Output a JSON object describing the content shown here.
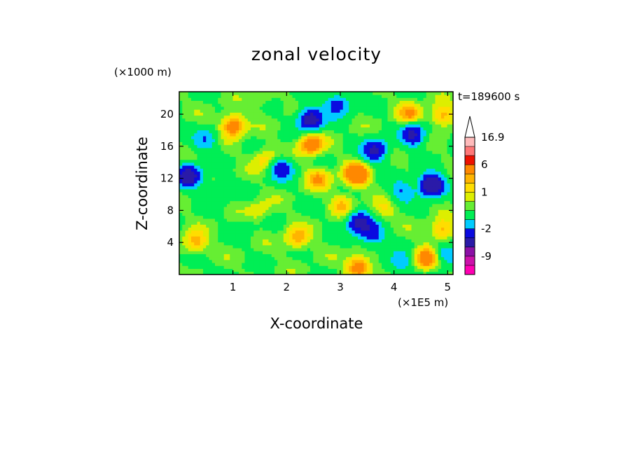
{
  "chart_data": {
    "type": "heatmap",
    "title": "zonal velocity",
    "xlabel": "X-coordinate",
    "ylabel": "Z-coordinate",
    "x_unit": "(×1E5 m)",
    "y_unit": "(×1000 m)",
    "time_label": "t=189600 s",
    "xlim": [
      0,
      5.1
    ],
    "ylim": [
      0,
      22.8
    ],
    "x_ticks": [
      "1",
      "2",
      "3",
      "4",
      "5"
    ],
    "y_ticks": [
      "4",
      "8",
      "12",
      "16",
      "20"
    ],
    "colorbar": {
      "levels": [
        -12,
        -9,
        -6,
        -3.5,
        -2,
        -1,
        0,
        0.5,
        1,
        1.5,
        2,
        6,
        9,
        12,
        16.9
      ],
      "colors": [
        "#ff00b3",
        "#cc11aa",
        "#8c10a6",
        "#2a1aa8",
        "#0a0ae0",
        "#00ccff",
        "#00ee55",
        "#66ee33",
        "#ddee00",
        "#ffdd00",
        "#ffb400",
        "#ff8800",
        "#ee1100",
        "#ff7777",
        "#ffbbbb"
      ],
      "labels": [
        "16.9",
        "6",
        "1",
        "-2",
        "-9"
      ]
    },
    "features": [
      {
        "x": 0.18,
        "z": 12.3,
        "u": -5
      },
      {
        "x": 2.45,
        "z": 19.4,
        "u": -5
      },
      {
        "x": 2.95,
        "z": 21.2,
        "u": -3
      },
      {
        "x": 3.65,
        "z": 15.5,
        "u": -4
      },
      {
        "x": 4.35,
        "z": 17.5,
        "u": -4
      },
      {
        "x": 4.7,
        "z": 11.2,
        "u": -6
      },
      {
        "x": 3.35,
        "z": 6.5,
        "u": -4
      },
      {
        "x": 3.6,
        "z": 5.0,
        "u": -3
      },
      {
        "x": 1.9,
        "z": 13.2,
        "u": -3
      },
      {
        "x": 4.1,
        "z": 1.5,
        "u": -2
      },
      {
        "x": 4.95,
        "z": 2.5,
        "u": -2
      },
      {
        "x": 0.5,
        "z": 16.8,
        "u": -2
      },
      {
        "x": 4.15,
        "z": 10.4,
        "u": -2
      },
      {
        "x": 1.0,
        "z": 18.6,
        "u": 3
      },
      {
        "x": 2.45,
        "z": 16.3,
        "u": 3
      },
      {
        "x": 3.3,
        "z": 12.5,
        "u": 4
      },
      {
        "x": 4.3,
        "z": 20.0,
        "u": 2
      },
      {
        "x": 4.9,
        "z": 19.8,
        "u": 2
      },
      {
        "x": 0.3,
        "z": 4.0,
        "u": 2
      },
      {
        "x": 2.2,
        "z": 4.5,
        "u": 2
      },
      {
        "x": 3.35,
        "z": 1.0,
        "u": 3
      },
      {
        "x": 4.6,
        "z": 2.0,
        "u": 3
      },
      {
        "x": 4.9,
        "z": 5.5,
        "u": 2
      },
      {
        "x": 3.05,
        "z": 8.8,
        "u": 1.5
      },
      {
        "x": 1.5,
        "z": 8.0,
        "u": 1
      },
      {
        "x": 2.6,
        "z": 12.0,
        "u": 2
      },
      {
        "x": 1.6,
        "z": 14.5,
        "u": 1.5
      },
      {
        "x": 0.7,
        "z": 10.5,
        "u": -1
      },
      {
        "x": 1.2,
        "z": 6.0,
        "u": -0.5
      },
      {
        "x": 0.2,
        "z": 1.0,
        "u": -0.5
      },
      {
        "x": 1.6,
        "z": 21.5,
        "u": 0.5
      },
      {
        "x": 3.8,
        "z": 8.0,
        "u": 1
      }
    ]
  }
}
